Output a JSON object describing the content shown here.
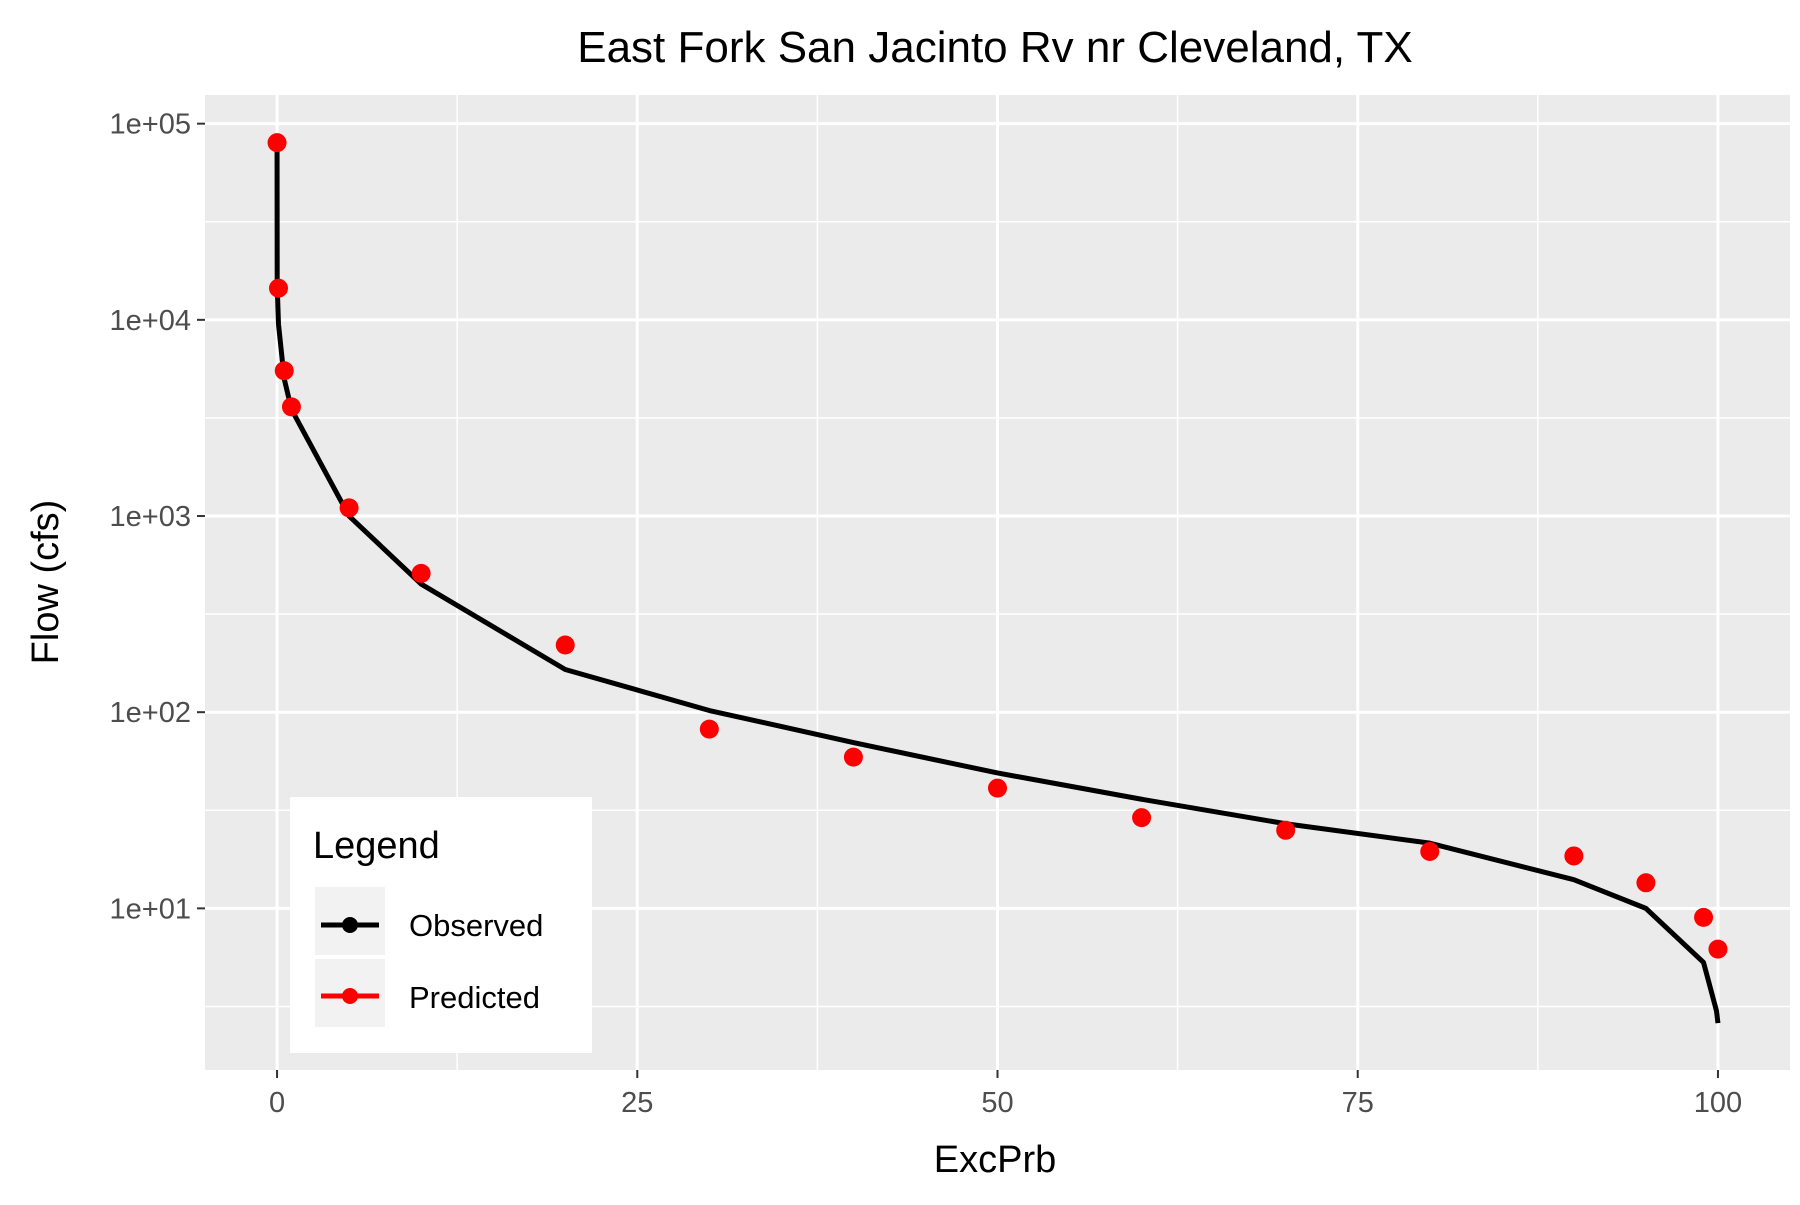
{
  "chart_data": {
    "type": "line",
    "title": "East Fork San Jacinto Rv nr Cleveland, TX",
    "xlabel": "ExcPrb",
    "ylabel": "Flow (cfs)",
    "xlim": [
      -5,
      105
    ],
    "ylim": [
      1.5,
      140000
    ],
    "yscale": "log",
    "grid": true,
    "legend_placement": "bottom-left",
    "x_ticks": [
      {
        "value": 0,
        "label": "0"
      },
      {
        "value": 25,
        "label": "25"
      },
      {
        "value": 50,
        "label": "50"
      },
      {
        "value": 75,
        "label": "75"
      },
      {
        "value": 100,
        "label": "100"
      }
    ],
    "y_ticks": [
      {
        "value": 10,
        "label": "1e+01"
      },
      {
        "value": 100,
        "label": "1e+02"
      },
      {
        "value": 1000,
        "label": "1e+03"
      },
      {
        "value": 10000,
        "label": "1e+04"
      },
      {
        "value": 100000,
        "label": "1e+05"
      }
    ],
    "legend_title": "Legend",
    "series": [
      {
        "name": "Observed",
        "type": "line",
        "color": "#000000",
        "x": [
          0,
          0.01,
          0.1,
          0.5,
          1,
          5,
          10,
          20,
          30,
          40,
          50,
          60,
          70,
          80,
          90,
          95,
          99,
          99.9,
          100
        ],
        "y": [
          80000,
          15000,
          9500,
          5000,
          3500,
          1000,
          450,
          165,
          102,
          70,
          49,
          36,
          27,
          21.5,
          14,
          10,
          5.3,
          3.0,
          2.6
        ]
      },
      {
        "name": "Predicted",
        "type": "scatter",
        "color": "#ff0000",
        "x": [
          0,
          0.1,
          0.5,
          1,
          5,
          10,
          20,
          30,
          40,
          50,
          60,
          70,
          80,
          90,
          95,
          99,
          100
        ],
        "y": [
          80000,
          14500,
          5500,
          3600,
          1100,
          510,
          220,
          82,
          59,
          41,
          29,
          25,
          19.5,
          18.5,
          13.5,
          9,
          6.2
        ]
      }
    ]
  }
}
